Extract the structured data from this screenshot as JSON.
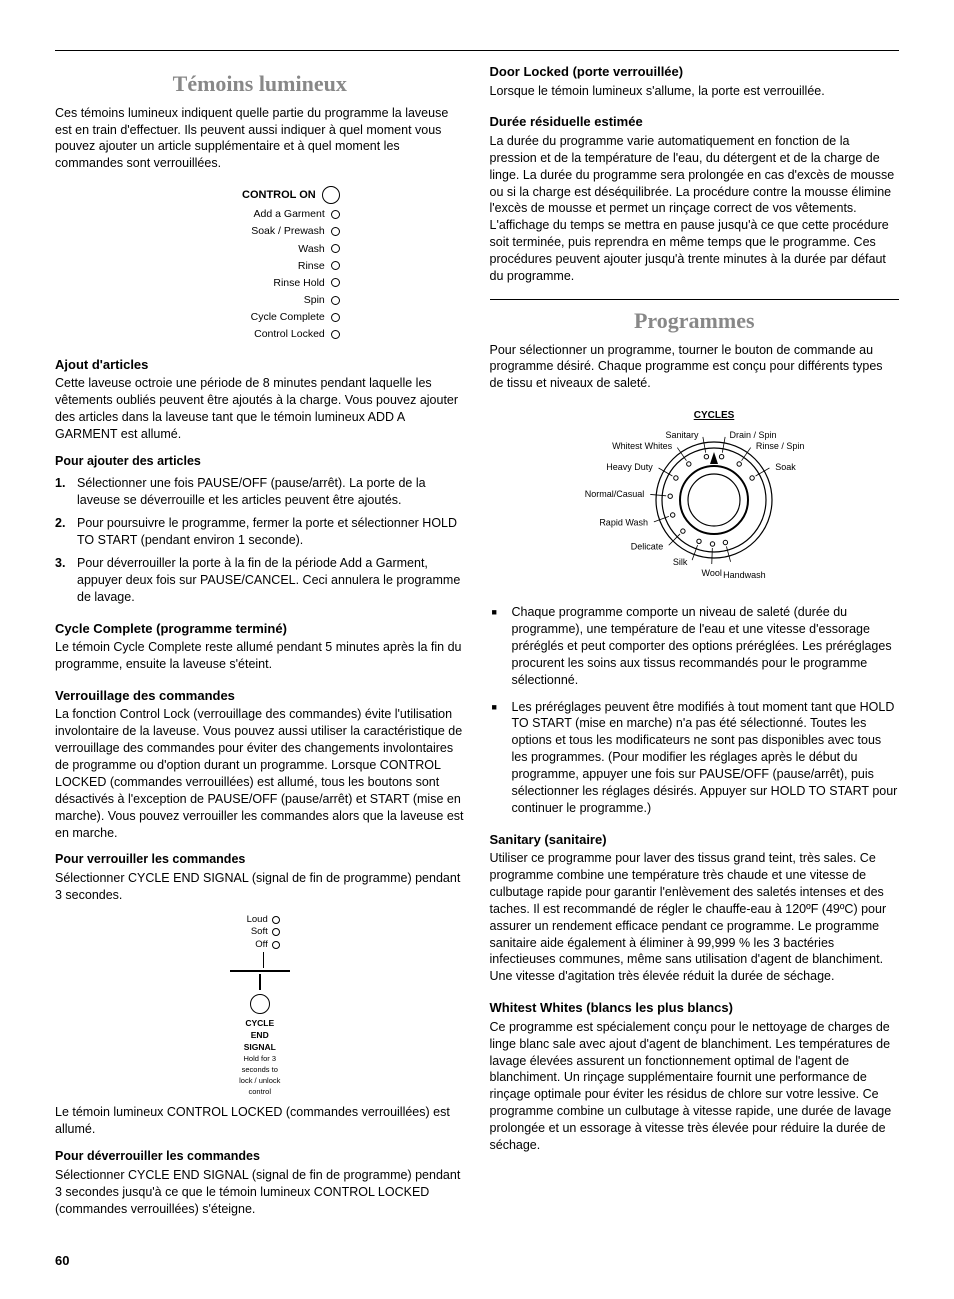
{
  "left": {
    "title": "Témoins lumineux",
    "intro": "Ces témoins lumineux indiquent quelle partie du programme la laveuse est en train d'effectuer. Ils peuvent aussi indiquer à quel moment vous pouvez ajouter un article supplémentaire et à quel moment les commandes sont verrouillées.",
    "indicators": {
      "control_on": "CONTROL ON",
      "items": [
        "Add a Garment",
        "Soak / Prewash",
        "Wash",
        "Rinse",
        "Rinse Hold",
        "Spin",
        "Cycle Complete",
        "Control Locked"
      ]
    },
    "ajout_h": "Ajout d'articles",
    "ajout_p": "Cette laveuse octroie une période de 8 minutes pendant laquelle les vêtements oubliés peuvent être ajoutés à la charge. Vous pouvez ajouter des articles dans la laveuse tant que le témoin lumineux ADD A GARMENT est allumé.",
    "pour_ajout_h": "Pour ajouter des articles",
    "steps": [
      "Sélectionner une fois PAUSE/OFF (pause/arrêt). La porte de la laveuse se déverrouille et les articles peuvent être ajoutés.",
      "Pour poursuivre le programme, fermer la porte et sélectionner HOLD TO START (pendant environ 1 seconde).",
      "Pour déverrouiller la porte à la fin de la période Add a Garment, appuyer deux fois sur PAUSE/CANCEL. Ceci annulera le programme de lavage."
    ],
    "cycle_h": "Cycle Complete (programme terminé)",
    "cycle_p": "Le témoin Cycle Complete reste allumé pendant 5 minutes après la fin du programme, ensuite la laveuse s'éteint.",
    "verr_h": "Verrouillage des commandes",
    "verr_p": "La fonction Control Lock (verrouillage des commandes) évite l'utilisation involontaire de la laveuse. Vous pouvez aussi utiliser la caractéristique de verrouillage des commandes pour éviter des changements involontaires de programme ou d'option durant un programme. Lorsque CONTROL LOCKED (commandes verrouillées) est allumé, tous les boutons sont désactivés à l'exception de PAUSE/OFF (pause/arrêt) et START (mise en marche). Vous pouvez verrouiller les commandes alors que la laveuse est en marche.",
    "pour_verr_h": "Pour verrouiller les commandes",
    "pour_verr_p": "Sélectionner CYCLE END SIGNAL (signal de fin de programme) pendant 3 secondes.",
    "signal": {
      "loud": "Loud",
      "soft": "Soft",
      "off": "Off",
      "title1": "CYCLE",
      "title2": "END",
      "title3": "SIGNAL",
      "hold1": "Hold for 3",
      "hold2": "seconds to",
      "hold3": "lock / unlock",
      "hold4": "control"
    },
    "locked_p": "Le témoin lumineux CONTROL LOCKED (commandes verrouillées) est allumé.",
    "deverr_h": "Pour déverrouiller les commandes",
    "deverr_p": "Sélectionner CYCLE END SIGNAL (signal de fin de programme) pendant 3 secondes jusqu'à ce que le témoin lumineux CONTROL LOCKED (commandes verrouillées) s'éteigne."
  },
  "right": {
    "door_h": "Door Locked (porte verrouillée)",
    "door_p": "Lorsque le témoin lumineux s'allume, la porte est verrouillée.",
    "duree_h": "Durée résiduelle estimée",
    "duree_p": "La durée du programme varie automatiquement en fonction de la pression et de la température de l'eau, du détergent et de la charge de linge. La durée du programme sera prolongée en cas d'excès de mousse ou si la charge est déséquilibrée. La procédure contre la mousse élimine l'excès de mousse et permet un rinçage correct de vos vêtements. L'affichage du temps se mettra en pause jusqu'à ce que cette procédure soit terminée, puis reprendra en même temps que le programme. Ces procédures peuvent ajouter jusqu'à trente minutes à la durée par défaut du programme.",
    "prog_title": "Programmes",
    "prog_intro": "Pour sélectionner un programme, tourner le bouton de commande au programme désiré. Chaque programme est conçu pour différents types de tissu et niveaux de saleté.",
    "dial": {
      "cycles_label": "CYCLES",
      "labels": [
        "Sanitary",
        "Whitest Whites",
        "Heavy Duty",
        "Normal/Casual",
        "Rapid Wash",
        "Delicate",
        "Silk",
        "Wool",
        "Handwash",
        "Soak",
        "Rinse / Spin",
        "Drain / Spin"
      ]
    },
    "bullets": [
      "Chaque programme comporte un niveau de saleté (durée du programme), une température de l'eau et une vitesse d'essorage préréglés et peut comporter des options préréglées. Les préréglages procurent les soins aux tissus recommandés pour le programme sélectionné.",
      "Les préréglages peuvent être modifiés à tout moment tant que HOLD TO START (mise en marche) n'a pas été sélectionné. Toutes les options et tous les modificateurs ne sont pas disponibles avec tous les programmes. (Pour modifier les réglages après le début du programme, appuyer une fois sur PAUSE/OFF (pause/arrêt), puis sélectionner les réglages désirés. Appuyer sur HOLD TO START pour continuer le programme.)"
    ],
    "sanitary_h": "Sanitary (sanitaire)",
    "sanitary_p": "Utiliser ce programme pour laver des tissus grand teint, très sales. Ce programme combine une température très chaude et une vitesse de culbutage rapide pour garantir l'enlèvement des saletés intenses et des taches. Il est recommandé de régler le chauffe-eau à 120ºF (49ºC) pour assurer un rendement efficace pendant ce programme. Le programme sanitaire aide également à éliminer à 99,999 % les 3 bactéries infectieuses communes, même sans utilisation d'agent de blanchiment. Une vitesse d'agitation très élevée réduit la durée de séchage.",
    "whitest_h": "Whitest Whites (blancs les plus blancs)",
    "whitest_p": "Ce programme est spécialement conçu pour le nettoyage de charges de linge blanc sale avec ajout d'agent de blanchiment. Les températures de lavage élevées assurent un fonctionnement optimal de l'agent de blanchiment. Un rinçage supplémentaire fournit une performance de rinçage optimale pour éviter les résidus de chlore sur votre lessive. Ce programme combine un culbutage à vitesse rapide, une durée de lavage prolongée et un essorage à vitesse très élevée pour réduire la durée de séchage."
  },
  "page_number": "60"
}
